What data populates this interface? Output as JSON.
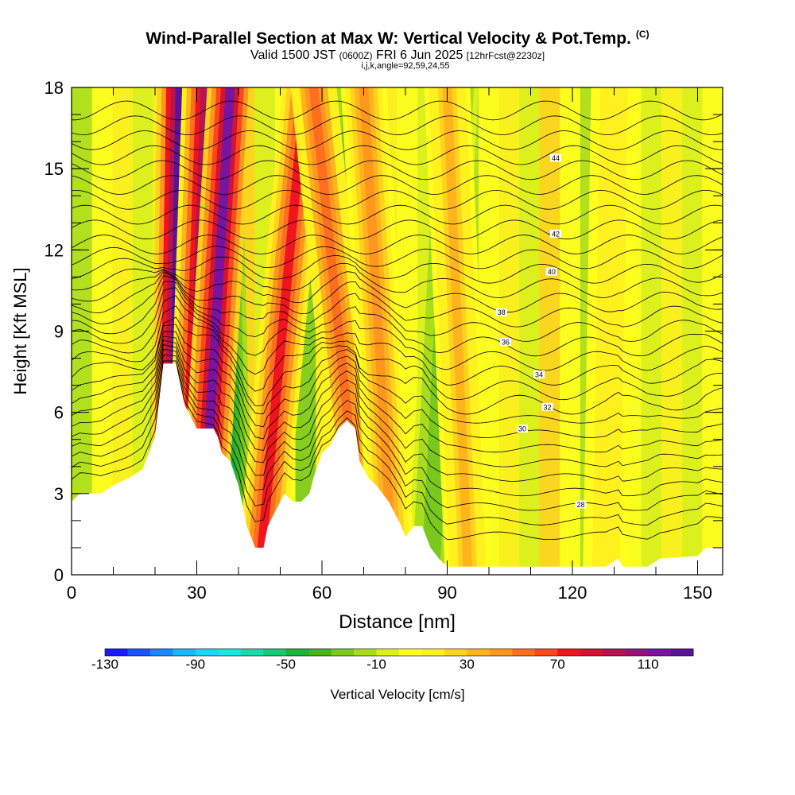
{
  "header": {
    "title": "Wind-Parallel Section at Max W: Vertical Velocity & Pot.Temp.",
    "copyright": "(C)",
    "valid_prefix": "Valid 1500 JST",
    "valid_utc": "(0600Z)",
    "valid_date": "FRI 6 Jun 2025",
    "forecast": "[12hrFcst@2230z]",
    "indices": "i,j,k,angle=92,59,24,55"
  },
  "colorbar": {
    "title": "Vertical Velocity [cm/s]",
    "tick_labels": [
      "-130",
      "-90",
      "-50",
      "-10",
      "30",
      "70",
      "110"
    ],
    "colors": [
      "#1a1aff",
      "#1a52ff",
      "#1a86ff",
      "#1ab4ff",
      "#19d7f5",
      "#19e6dc",
      "#19d9a6",
      "#1ac873",
      "#1fb23b",
      "#46b41e",
      "#78c81e",
      "#aadc1e",
      "#dcf01e",
      "#ffff1e",
      "#fff01e",
      "#ffd21e",
      "#ffb41e",
      "#ff961e",
      "#ff6e1e",
      "#ff461e",
      "#f0141e",
      "#d21432",
      "#b41450",
      "#961478",
      "#7814a0",
      "#5a1496"
    ]
  },
  "chart_data": {
    "type": "heatmap",
    "title": "Wind-Parallel Section at Max W: Vertical Velocity & Pot.Temp.",
    "xlabel": "Distance [nm]",
    "ylabel": "Height [Kft MSL]",
    "xlim": [
      0,
      156
    ],
    "ylim": [
      0,
      18
    ],
    "x_ticks": [
      0,
      30,
      60,
      90,
      120,
      150
    ],
    "y_ticks": [
      0,
      3,
      6,
      9,
      12,
      15,
      18
    ],
    "colorbar_range": [
      -130,
      130
    ],
    "field": "Vertical Velocity [cm/s]",
    "terrain_kft": [
      [
        0,
        2.7
      ],
      [
        2,
        3.0
      ],
      [
        7,
        3.0
      ],
      [
        10,
        3.3
      ],
      [
        14,
        3.6
      ],
      [
        17,
        3.9
      ],
      [
        20,
        5.1
      ],
      [
        22,
        7.8
      ],
      [
        25,
        7.8
      ],
      [
        27,
        6.3
      ],
      [
        30,
        5.4
      ],
      [
        34,
        5.4
      ],
      [
        35,
        5.1
      ],
      [
        36,
        4.5
      ],
      [
        38,
        4.2
      ],
      [
        40,
        3.3
      ],
      [
        42,
        1.8
      ],
      [
        44,
        1.0
      ],
      [
        46,
        1.0
      ],
      [
        47,
        1.8
      ],
      [
        49,
        2.4
      ],
      [
        51,
        3.0
      ],
      [
        53,
        2.7
      ],
      [
        55,
        2.7
      ],
      [
        57,
        3.0
      ],
      [
        58,
        3.6
      ],
      [
        60,
        4.5
      ],
      [
        62,
        4.8
      ],
      [
        64,
        5.4
      ],
      [
        66,
        5.7
      ],
      [
        68,
        5.4
      ],
      [
        69,
        4.2
      ],
      [
        71,
        3.6
      ],
      [
        73,
        3.3
      ],
      [
        76,
        2.7
      ],
      [
        79,
        1.8
      ],
      [
        80,
        1.4
      ],
      [
        82,
        1.8
      ],
      [
        84,
        1.8
      ],
      [
        86,
        1.0
      ],
      [
        88,
        0.6
      ],
      [
        90,
        0.3
      ],
      [
        128,
        0.3
      ],
      [
        131,
        0.6
      ],
      [
        132,
        0.3
      ],
      [
        138,
        0.3
      ],
      [
        141,
        0.6
      ],
      [
        150,
        0.7
      ],
      [
        152,
        1.0
      ],
      [
        156,
        1.0
      ]
    ],
    "updraft_bands": [
      {
        "x_base": 24,
        "x_top": 26,
        "w": 120
      },
      {
        "x_base": 28,
        "x_top": 32,
        "w": 90
      },
      {
        "x_base": 31,
        "x_top": 38,
        "w": 110
      },
      {
        "x_base": 45,
        "x_top": 56,
        "w": 70
      },
      {
        "x_base": 70,
        "x_top": 58,
        "w": 50
      },
      {
        "x_base": 77,
        "x_top": 70,
        "w": 40
      },
      {
        "x_base": 95,
        "x_top": 90,
        "w": 30
      },
      {
        "x_base": 128,
        "x_top": 130,
        "w": 20
      }
    ],
    "downdraft_bands": [
      {
        "x_base": 23,
        "x_top": 27,
        "w": -100
      },
      {
        "x_base": 27,
        "x_top": 30,
        "w": -80
      },
      {
        "x_base": 38,
        "x_top": 35,
        "w": -60
      },
      {
        "x_base": 71,
        "x_top": 69,
        "w": -55
      },
      {
        "x_base": 86,
        "x_top": 92,
        "w": -30
      }
    ],
    "theta_contours": [
      {
        "value": 28,
        "label": "28",
        "label_x": 122,
        "label_y": 2.6
      },
      {
        "value": 30,
        "label": "30",
        "label_x": 108,
        "label_y": 5.4
      },
      {
        "value": 32,
        "label": "32",
        "label_x": 114,
        "label_y": 6.2
      },
      {
        "value": 34,
        "label": "34",
        "label_x": 112,
        "label_y": 7.4
      },
      {
        "value": 36,
        "label": "36",
        "label_x": 104,
        "label_y": 8.6
      },
      {
        "value": 38,
        "label": "38",
        "label_x": 103,
        "label_y": 9.7
      },
      {
        "value": 40,
        "label": "40",
        "label_x": 115,
        "label_y": 11.2
      },
      {
        "value": 42,
        "label": "42",
        "label_x": 116,
        "label_y": 12.6
      },
      {
        "value": 44,
        "label": "44",
        "label_x": 116,
        "label_y": 15.4
      }
    ]
  }
}
